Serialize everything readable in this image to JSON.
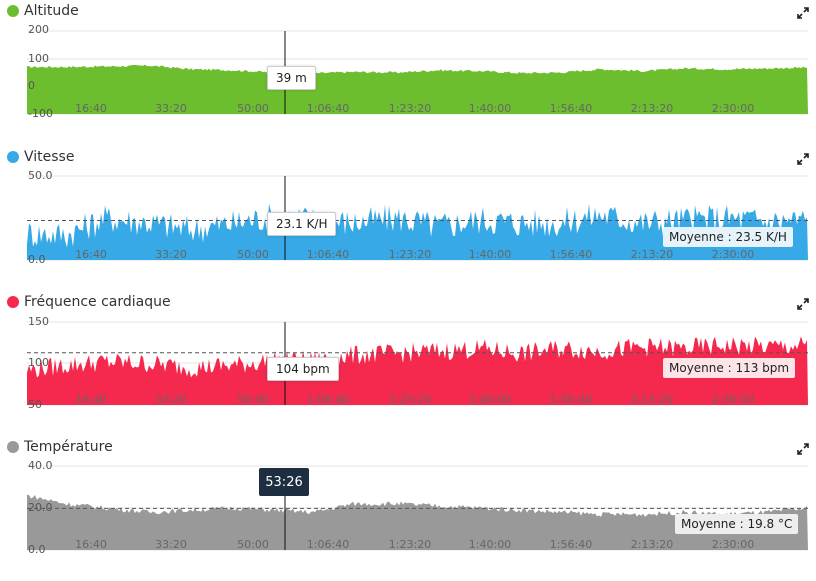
{
  "cursor_time": "53:26",
  "x_ticks": [
    "16:40",
    "33:20",
    "50:00",
    "1:06:40",
    "1:23:20",
    "1:40:00",
    "1:56:40",
    "2:13:20",
    "2:30:00"
  ],
  "chart_data": [
    {
      "type": "area",
      "title": "Altitude",
      "color": "#6cbe2f",
      "y_ticks": [
        "200",
        "100",
        "0",
        "-100"
      ],
      "ylim": [
        -100,
        200
      ],
      "grid": true,
      "cursor_value": "39 m",
      "x_minutes": [
        0,
        8,
        16,
        25,
        33,
        42,
        50,
        58,
        66,
        75,
        83,
        92,
        100,
        108,
        116,
        125,
        133,
        141,
        150,
        158
      ],
      "values": [
        70,
        70,
        72,
        75,
        62,
        58,
        50,
        47,
        52,
        50,
        58,
        55,
        48,
        50,
        62,
        55,
        65,
        62,
        65,
        68
      ]
    },
    {
      "type": "area",
      "title": "Vitesse",
      "color": "#36a9e6",
      "y_ticks": [
        "50.0",
        "0.0"
      ],
      "ylim": [
        0,
        50
      ],
      "grid": true,
      "cursor_value": "23.1 K/H",
      "average_label": "Moyenne : 23.5 K/H",
      "average": 23.5,
      "x_minutes": [
        0,
        8,
        16,
        25,
        33,
        42,
        50,
        58,
        66,
        75,
        83,
        92,
        100,
        108,
        116,
        125,
        133,
        141,
        150,
        158
      ],
      "values": [
        16,
        15,
        25,
        22,
        18,
        22,
        26,
        24,
        22,
        25,
        20,
        24,
        22,
        22,
        27,
        22,
        24,
        25,
        23,
        24
      ]
    },
    {
      "type": "area",
      "title": "Fréquence cardiaque",
      "color": "#f5284e",
      "y_ticks": [
        "150",
        "100",
        "50"
      ],
      "ylim": [
        50,
        150
      ],
      "grid": true,
      "cursor_value": "104 bpm",
      "average_label": "Moyenne : 113 bpm",
      "average": 113,
      "x_minutes": [
        0,
        8,
        16,
        25,
        33,
        42,
        50,
        58,
        66,
        75,
        83,
        92,
        100,
        108,
        116,
        125,
        133,
        141,
        150,
        158
      ],
      "values": [
        92,
        98,
        102,
        100,
        95,
        98,
        104,
        104,
        110,
        112,
        115,
        118,
        112,
        118,
        115,
        120,
        118,
        122,
        120,
        122
      ]
    },
    {
      "type": "area",
      "title": "Température",
      "color": "#999999",
      "y_ticks": [
        "40.0",
        "20.0",
        "0.0"
      ],
      "ylim": [
        0,
        40
      ],
      "grid": true,
      "average_label": "Moyenne : 19.8 °C",
      "average": 19.8,
      "x_minutes": [
        0,
        8,
        16,
        25,
        33,
        42,
        50,
        58,
        66,
        75,
        83,
        92,
        100,
        108,
        116,
        125,
        133,
        141,
        150,
        158
      ],
      "values": [
        26,
        22,
        20,
        18,
        19,
        20,
        19,
        18,
        22,
        22,
        21,
        20,
        19,
        18,
        17,
        17,
        18,
        17,
        18,
        20
      ]
    }
  ]
}
